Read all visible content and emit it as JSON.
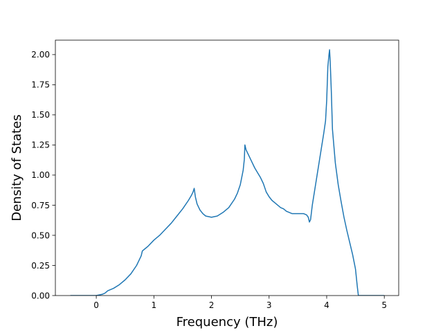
{
  "chart_data": {
    "type": "line",
    "title": "",
    "xlabel": "Frequency (THz)",
    "ylabel": "Density of States",
    "xlim": [
      -0.71,
      5.25
    ],
    "ylim": [
      0.0,
      2.12
    ],
    "xticks": [
      0,
      1,
      2,
      3,
      4,
      5
    ],
    "yticks": [
      0.0,
      0.25,
      0.5,
      0.75,
      1.0,
      1.25,
      1.5,
      1.75,
      2.0
    ],
    "xtick_labels": [
      "0",
      "1",
      "2",
      "3",
      "4",
      "5"
    ],
    "ytick_labels": [
      "0.00",
      "0.25",
      "0.50",
      "0.75",
      "1.00",
      "1.25",
      "1.50",
      "1.75",
      "2.00"
    ],
    "grid": false,
    "legend": "none",
    "series": [
      {
        "color": "#1f77b4",
        "x": [
          -0.45,
          0.0,
          0.1,
          0.15,
          0.2,
          0.25,
          0.3,
          0.4,
          0.5,
          0.6,
          0.7,
          0.75,
          0.78,
          0.8,
          0.85,
          0.9,
          1.0,
          1.1,
          1.2,
          1.3,
          1.4,
          1.5,
          1.6,
          1.65,
          1.68,
          1.7,
          1.72,
          1.75,
          1.8,
          1.85,
          1.9,
          2.0,
          2.1,
          2.2,
          2.3,
          2.4,
          2.45,
          2.5,
          2.55,
          2.57,
          2.58,
          2.6,
          2.65,
          2.7,
          2.75,
          2.8,
          2.85,
          2.9,
          2.95,
          3.0,
          3.05,
          3.1,
          3.15,
          3.2,
          3.25,
          3.3,
          3.35,
          3.4,
          3.45,
          3.5,
          3.55,
          3.6,
          3.65,
          3.68,
          3.7,
          3.72,
          3.75,
          3.8,
          3.85,
          3.9,
          3.95,
          3.98,
          4.0,
          4.02,
          4.04,
          4.05,
          4.06,
          4.08,
          4.1,
          4.15,
          4.2,
          4.25,
          4.3,
          4.35,
          4.4,
          4.45,
          4.5,
          4.53,
          4.55,
          4.6,
          4.7,
          4.8,
          5.0
        ],
        "y": [
          0.0,
          0.0,
          0.01,
          0.02,
          0.04,
          0.05,
          0.06,
          0.09,
          0.13,
          0.18,
          0.25,
          0.3,
          0.33,
          0.37,
          0.39,
          0.41,
          0.46,
          0.5,
          0.55,
          0.6,
          0.66,
          0.72,
          0.79,
          0.83,
          0.86,
          0.89,
          0.82,
          0.76,
          0.71,
          0.68,
          0.66,
          0.65,
          0.66,
          0.69,
          0.73,
          0.8,
          0.85,
          0.92,
          1.04,
          1.13,
          1.25,
          1.21,
          1.16,
          1.11,
          1.06,
          1.02,
          0.98,
          0.93,
          0.86,
          0.82,
          0.79,
          0.77,
          0.75,
          0.73,
          0.72,
          0.7,
          0.69,
          0.68,
          0.68,
          0.68,
          0.68,
          0.68,
          0.67,
          0.65,
          0.61,
          0.63,
          0.75,
          0.9,
          1.05,
          1.2,
          1.35,
          1.45,
          1.62,
          1.9,
          2.0,
          2.04,
          1.95,
          1.7,
          1.38,
          1.1,
          0.92,
          0.78,
          0.65,
          0.54,
          0.44,
          0.34,
          0.22,
          0.08,
          0.0,
          0.0,
          0.0,
          0.0,
          0.0
        ]
      }
    ]
  }
}
